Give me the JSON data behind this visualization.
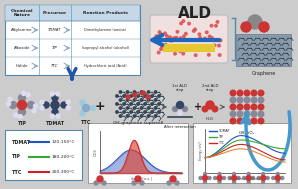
{
  "bg_color": "#cccccc",
  "white": "#ffffff",
  "table_border": "#5588aa",
  "table_header_bg": "#c5d8e8",
  "arrow_blue": "#2255aa",
  "arrow_blue_big": "#2266bb",
  "arrow_curved": "#4499cc",
  "text_dark": "#222222",
  "text_mid": "#444444",
  "reactor_fill": "#f0e0e0",
  "reactor_border": "#bbbbbb",
  "substrate_fill": "#e8c830",
  "dot_red": "#dd5555",
  "graphene_bg": "#8899aa",
  "graphene_line": "#223344",
  "atom_red": "#cc3333",
  "atom_gray": "#888899",
  "atom_blue": "#334466",
  "atom_green": "#448844",
  "atom_light": "#99aacc",
  "atom_white": "#ddddee",
  "peak_blue": "#2244aa",
  "peak_red": "#cc2222",
  "peak_fill_blue": "#5577cc",
  "peak_fill_red": "#dd4433",
  "line_blue": "#2255bb",
  "line_green": "#33aa33",
  "line_red": "#cc2222",
  "line_orange": "#dd8833",
  "panel_border": "#999999",
  "ald_label": "ALD",
  "graphene_label": "Graphene",
  "gr_tio2_label": "GR-TiO₂",
  "h2o_label": "H₂O",
  "oh_graphene_label": "OH-graphene supercell",
  "after_label": "After interaction",
  "tip_label": "TIP",
  "tdmat_label": "TDMAT",
  "ttc_label": "TTC",
  "step1_label": "1st ALD\nstep",
  "step2_label": "2nd ALD\nstep",
  "col1": "Chemical\nNature",
  "col2": "Precursor",
  "col3": "Reaction Products",
  "r1c1": "Alkylamine",
  "r1c2": "TDMAT",
  "r1c3": "Dimethylamine (amine)",
  "r2c1": "Alkoxide",
  "r2c2": "TIP",
  "r2c3": "Isopropyl alcohol (alcohol)",
  "r3c1": "Halide",
  "r3c2": "TTC",
  "r3c3": "Hydrochloric acid (Acid)",
  "temp_tdmat": "120-150°C",
  "temp_tip": "180-200°C",
  "temp_ttc": "200-300°C",
  "legend_label_tdmat": "TDMAT",
  "legend_label_tip": "TIP",
  "legend_label_ttc": "TTC",
  "legend_color_tdmat": "#2255bb",
  "legend_color_tip": "#33aa33",
  "legend_color_ttc": "#cc2222"
}
